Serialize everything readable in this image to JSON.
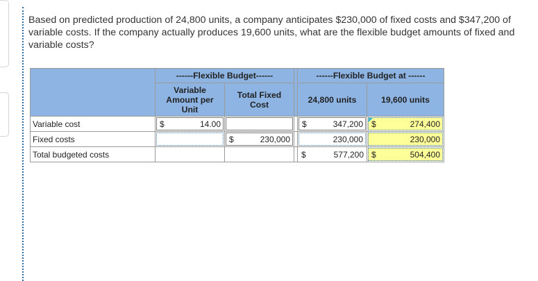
{
  "question": "Based on predicted production of 24,800 units, a company anticipates $230,000 of fixed costs and $347,200 of variable costs. If the company actually produces 19,600 units, what are the flexible budget amounts of fixed and variable costs?",
  "table": {
    "header_group_left": "------Flexible Budget------",
    "header_group_right": "------Flexible Budget at ------",
    "col_variable": "Variable Amount per Unit",
    "col_total_fixed": "Total Fixed Cost",
    "col_units_1": "24,800 units",
    "col_units_2": "19,600 units",
    "rows": [
      {
        "label": "Variable cost",
        "var_cur": "$",
        "var_amt": "14.00",
        "fixed_cur": "",
        "fixed_amt": "",
        "u1_cur": "$",
        "u1_amt": "347,200",
        "u2_cur": "$",
        "u2_amt": "274,400"
      },
      {
        "label": "Fixed costs",
        "var_cur": "",
        "var_amt": "",
        "fixed_cur": "$",
        "fixed_amt": "230,000",
        "u1_cur": "",
        "u1_amt": "230,000",
        "u2_cur": "",
        "u2_amt": "230,000"
      },
      {
        "label": "Total budgeted costs",
        "var_cur": "",
        "var_amt": "",
        "fixed_cur": "",
        "fixed_amt": "",
        "u1_cur": "$",
        "u1_amt": "577,200",
        "u2_cur": "$",
        "u2_amt": "504,400"
      }
    ]
  },
  "colors": {
    "header_bg": "#8db4e3",
    "highlight": "#ffff99",
    "flag": "#33b5d4"
  }
}
